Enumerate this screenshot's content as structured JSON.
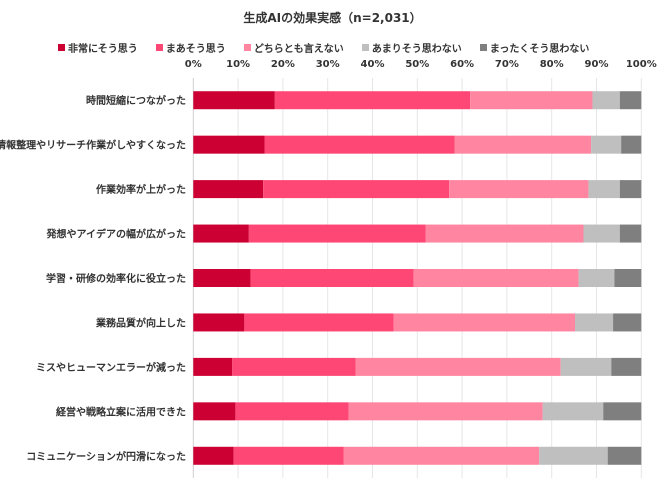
{
  "chart_data": {
    "type": "bar",
    "orientation": "horizontal",
    "stacked": true,
    "title": "生成AIの効果実感（n=2,031）",
    "xlabel": "",
    "ylabel": "",
    "xlim": [
      0,
      100
    ],
    "x_ticks": [
      "0%",
      "10%",
      "20%",
      "30%",
      "40%",
      "50%",
      "60%",
      "70%",
      "80%",
      "90%",
      "100%"
    ],
    "grid": true,
    "legend_position": "top",
    "categories": [
      "時間短縮につながった",
      "情報整理やリサーチ作業がしやすくなった",
      "作業効率が上がった",
      "発想やアイデアの幅が広がった",
      "学習・研修の効率化に役立った",
      "業務品質が向上した",
      "ミスやヒューマンエラーが減った",
      "経営や戦略立案に活用できた",
      "コミュニケーションが円滑になった"
    ],
    "series": [
      {
        "name": "非常にそう思う",
        "color": "#CC0033",
        "values": [
          18.2,
          15.9,
          15.6,
          12.4,
          12.8,
          11.4,
          8.7,
          9.4,
          9.0
        ]
      },
      {
        "name": "まあそう思う",
        "color": "#FF4775",
        "values": [
          43.6,
          42.4,
          41.5,
          39.5,
          36.4,
          33.3,
          27.5,
          25.3,
          24.6
        ]
      },
      {
        "name": "どちらとも言えない",
        "color": "#FF85A0",
        "values": [
          27.3,
          30.5,
          31.1,
          35.2,
          36.8,
          40.5,
          45.8,
          43.3,
          43.6
        ]
      },
      {
        "name": "あまりそう思わない",
        "color": "#BFBFBF",
        "values": [
          6.1,
          6.7,
          7.0,
          8.1,
          8.0,
          8.5,
          11.3,
          13.5,
          15.3
        ]
      },
      {
        "name": "まったくそう思わない",
        "color": "#7F7F7F",
        "values": [
          4.8,
          4.5,
          4.8,
          4.8,
          6.0,
          6.3,
          6.7,
          8.5,
          7.5
        ]
      }
    ]
  }
}
